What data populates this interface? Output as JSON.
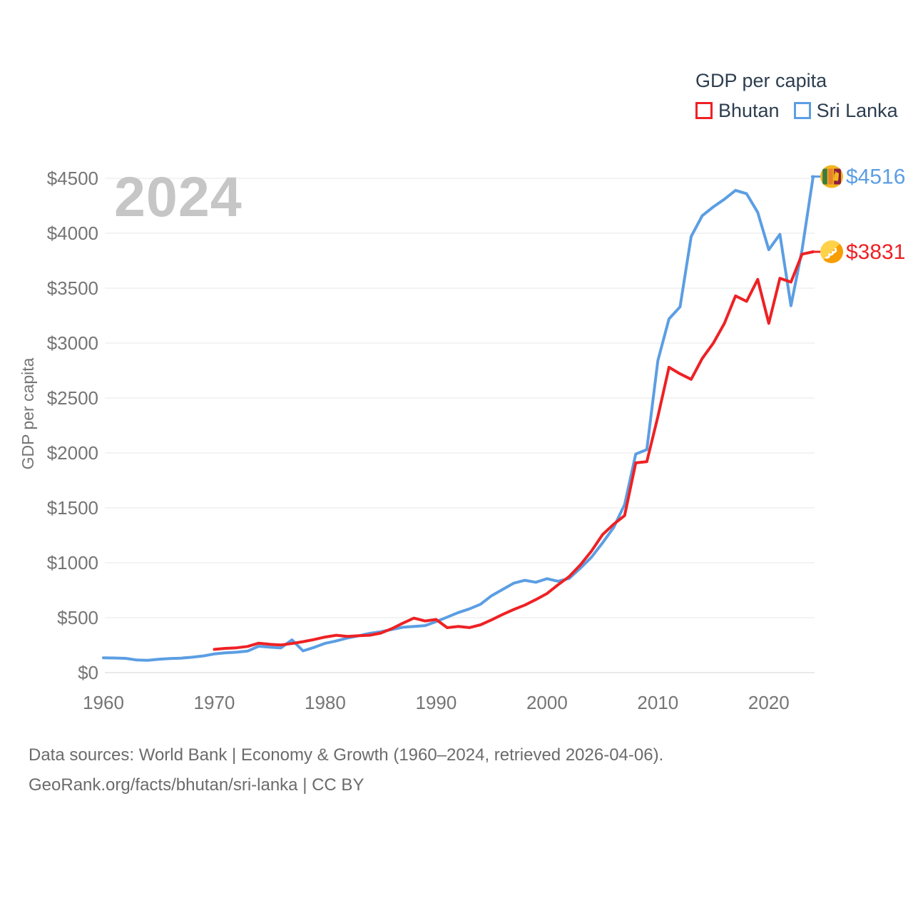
{
  "watermark": "2024",
  "legend": {
    "title": "GDP per capita",
    "items": [
      {
        "label": "Bhutan",
        "color": "#ee2124"
      },
      {
        "label": "Sri Lanka",
        "color": "#5b9ee3"
      }
    ]
  },
  "footer": {
    "line1": "Data sources: World Bank | Economy & Growth (1960–2024, retrieved 2026-04-06).",
    "line2": "GeoRank.org/facts/bhutan/sri-lanka | CC BY"
  },
  "chart_data": {
    "type": "line",
    "title": "GDP per capita",
    "xlabel": "",
    "ylabel": "GDP per capita",
    "x_start": 1960,
    "x_end": 2024,
    "ylim": [
      0,
      4500
    ],
    "yticks": [
      0,
      500,
      1000,
      1500,
      2000,
      2500,
      3000,
      3500,
      4000,
      4500
    ],
    "ytick_prefix": "$",
    "xticks": [
      1960,
      1970,
      1980,
      1990,
      2000,
      2010,
      2020
    ],
    "grid": true,
    "legend_position": "top-right",
    "axis_text_color": "#757575",
    "grid_color": "#ececec",
    "zero_line_color": "#dcdcdc",
    "series": [
      {
        "name": "Bhutan",
        "color": "#ee2124",
        "end_label": "$3831",
        "flag": "flag-bhutan",
        "values": [
          null,
          null,
          null,
          null,
          null,
          null,
          null,
          null,
          null,
          null,
          212,
          221,
          226,
          238,
          268,
          258,
          252,
          265,
          282,
          301,
          324,
          340,
          330,
          336,
          340,
          360,
          400,
          450,
          496,
          470,
          484,
          409,
          420,
          410,
          435,
          480,
          530,
          575,
          615,
          665,
          720,
          800,
          875,
          980,
          1105,
          1255,
          1350,
          1430,
          1910,
          1920,
          2330,
          2780,
          2720,
          2670,
          2860,
          3000,
          3180,
          3430,
          3380,
          3580,
          3180,
          3590,
          3555,
          3810,
          3831
        ]
      },
      {
        "name": "Sri Lanka",
        "color": "#5b9ee3",
        "end_label": "$4516",
        "flag": "flag-sri-lanka",
        "values": [
          135,
          133,
          130,
          115,
          112,
          122,
          128,
          132,
          140,
          152,
          170,
          180,
          186,
          196,
          240,
          232,
          225,
          298,
          198,
          230,
          267,
          288,
          315,
          335,
          357,
          372,
          392,
          413,
          420,
          428,
          464,
          505,
          547,
          580,
          622,
          700,
          757,
          814,
          840,
          823,
          855,
          832,
          858,
          950,
          1050,
          1180,
          1320,
          1530,
          1990,
          2030,
          2840,
          3220,
          3330,
          3970,
          4160,
          4240,
          4310,
          4390,
          4360,
          4190,
          3850,
          3990,
          3340,
          3850,
          4516
        ]
      }
    ]
  }
}
